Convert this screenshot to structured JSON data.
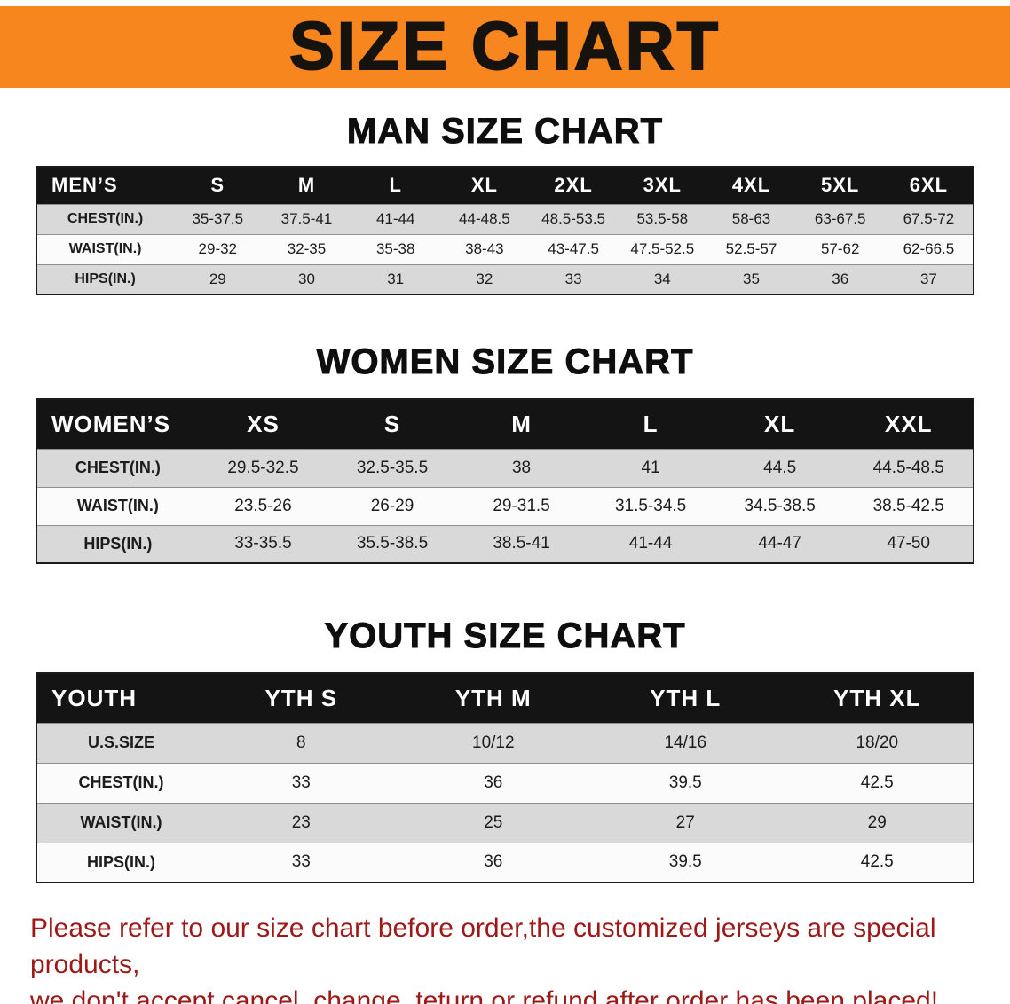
{
  "banner": {
    "title": "SIZE CHART"
  },
  "colors": {
    "banner_bg": "#F6861D",
    "table_header_bg": "#141414",
    "row_shaded": "#D9D9D9",
    "row_plain": "#FBFBFB",
    "note_text": "#9E1818"
  },
  "sections": [
    {
      "heading": "MAN SIZE CHART",
      "table": {
        "header": [
          "MEN’S",
          "S",
          "M",
          "L",
          "XL",
          "2XL",
          "3XL",
          "4XL",
          "5XL",
          "6XL"
        ],
        "rows": [
          [
            "CHEST(IN.)",
            "35-37.5",
            "37.5-41",
            "41-44",
            "44-48.5",
            "48.5-53.5",
            "53.5-58",
            "58-63",
            "63-67.5",
            "67.5-72"
          ],
          [
            "WAIST(IN.)",
            "29-32",
            "32-35",
            "35-38",
            "38-43",
            "43-47.5",
            "47.5-52.5",
            "52.5-57",
            "57-62",
            "62-66.5"
          ],
          [
            "HIPS(IN.)",
            "29",
            "30",
            "31",
            "32",
            "33",
            "34",
            "35",
            "36",
            "37"
          ]
        ]
      }
    },
    {
      "heading": "WOMEN SIZE CHART",
      "table": {
        "header": [
          "WOMEN’S",
          "XS",
          "S",
          "M",
          "L",
          "XL",
          "XXL"
        ],
        "rows": [
          [
            "CHEST(IN.)",
            "29.5-32.5",
            "32.5-35.5",
            "38",
            "41",
            "44.5",
            "44.5-48.5"
          ],
          [
            "WAIST(IN.)",
            "23.5-26",
            "26-29",
            "29-31.5",
            "31.5-34.5",
            "34.5-38.5",
            "38.5-42.5"
          ],
          [
            "HIPS(IN.)",
            "33-35.5",
            "35.5-38.5",
            "38.5-41",
            "41-44",
            "44-47",
            "47-50"
          ]
        ]
      }
    },
    {
      "heading": "YOUTH SIZE CHART",
      "table": {
        "header": [
          "YOUTH",
          "YTH S",
          "YTH M",
          "YTH L",
          "YTH XL"
        ],
        "rows": [
          [
            "U.S.SIZE",
            "8",
            "10/12",
            "14/16",
            "18/20"
          ],
          [
            "CHEST(IN.)",
            "33",
            "36",
            "39.5",
            "42.5"
          ],
          [
            "WAIST(IN.)",
            "23",
            "25",
            "27",
            "29"
          ],
          [
            "HIPS(IN.)",
            "33",
            "36",
            "39.5",
            "42.5"
          ]
        ]
      }
    }
  ],
  "footer_note": {
    "line1": "Please refer to our size chart before order,the customized jerseys are special products,",
    "line2": "we don't accept cancel, change, teturn or refund after order has been placed!"
  }
}
